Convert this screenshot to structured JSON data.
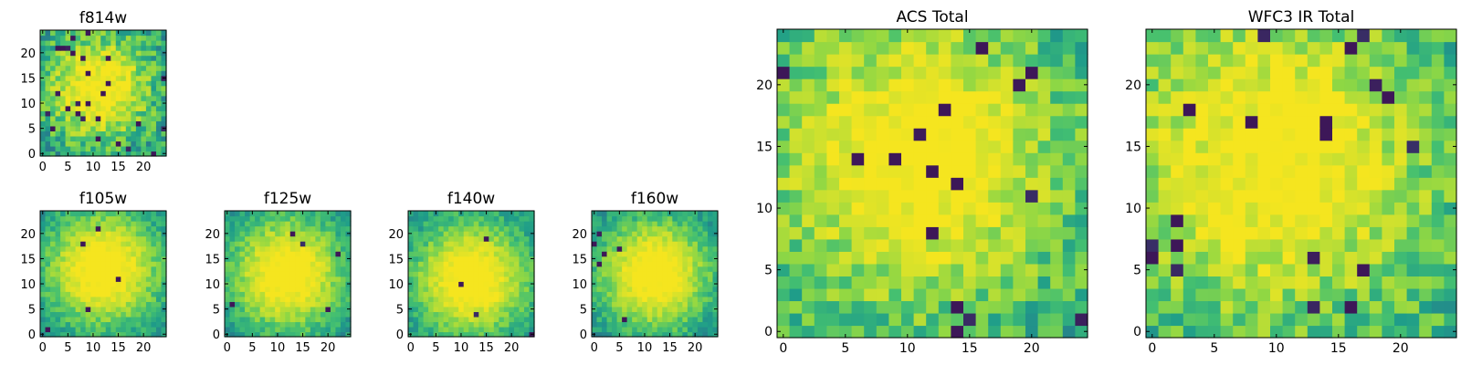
{
  "figure": {
    "palette": [
      "#3d1758",
      "#2b6f8c",
      "#1f9d89",
      "#43bf71",
      "#8fd744",
      "#cfe12e",
      "#f5e51f"
    ]
  },
  "chart_data": [
    {
      "type": "heatmap",
      "title": "f814w",
      "size": 25,
      "xticks": [
        "0",
        "5",
        "10",
        "15",
        "20"
      ],
      "yticks": [
        "0",
        "5",
        "10",
        "15",
        "20"
      ],
      "center": [
        11,
        13
      ],
      "peak": 0.8,
      "width": 7.0,
      "noise": 0.22,
      "bg": 0.42,
      "dark_rate": 0.035,
      "seed": 11
    },
    {
      "type": "heatmap",
      "title": "f105w",
      "size": 25,
      "xticks": [
        "0",
        "5",
        "10",
        "15",
        "20"
      ],
      "yticks": [
        "0",
        "5",
        "10",
        "15",
        "20"
      ],
      "center": [
        12,
        13
      ],
      "peak": 0.9,
      "width": 7.5,
      "noise": 0.12,
      "bg": 0.36,
      "dark_rate": 0.008,
      "seed": 23
    },
    {
      "type": "heatmap",
      "title": "f125w",
      "size": 25,
      "xticks": [
        "0",
        "5",
        "10",
        "15",
        "20"
      ],
      "yticks": [
        "0",
        "5",
        "10",
        "15",
        "20"
      ],
      "center": [
        12,
        12
      ],
      "peak": 0.88,
      "width": 7.5,
      "noise": 0.12,
      "bg": 0.36,
      "dark_rate": 0.008,
      "seed": 37
    },
    {
      "type": "heatmap",
      "title": "f140w",
      "size": 25,
      "xticks": [
        "0",
        "5",
        "10",
        "15",
        "20"
      ],
      "yticks": [
        "0",
        "5",
        "10",
        "15",
        "20"
      ],
      "center": [
        12,
        11
      ],
      "peak": 0.9,
      "width": 7.5,
      "noise": 0.12,
      "bg": 0.36,
      "dark_rate": 0.008,
      "seed": 41
    },
    {
      "type": "heatmap",
      "title": "f160w",
      "size": 25,
      "xticks": [
        "0",
        "5",
        "10",
        "15",
        "20"
      ],
      "yticks": [
        "0",
        "5",
        "10",
        "15",
        "20"
      ],
      "center": [
        12,
        12
      ],
      "peak": 0.9,
      "width": 7.5,
      "noise": 0.12,
      "bg": 0.34,
      "dark_rate": 0.008,
      "seed": 53
    },
    {
      "type": "heatmap",
      "title": "ACS Total",
      "size": 25,
      "xticks": [
        "0",
        "5",
        "10",
        "15",
        "20"
      ],
      "yticks": [
        "0",
        "5",
        "10",
        "15",
        "20"
      ],
      "center": [
        11,
        14
      ],
      "peak": 0.75,
      "width": 8.0,
      "noise": 0.2,
      "bg": 0.48,
      "dark_rate": 0.03,
      "seed": 67
    },
    {
      "type": "heatmap",
      "title": "WFC3 IR Total",
      "size": 25,
      "xticks": [
        "0",
        "5",
        "10",
        "15",
        "20"
      ],
      "yticks": [
        "0",
        "5",
        "10",
        "15",
        "20"
      ],
      "center": [
        10,
        14
      ],
      "peak": 0.7,
      "width": 8.5,
      "noise": 0.2,
      "bg": 0.5,
      "dark_rate": 0.03,
      "seed": 79
    }
  ]
}
